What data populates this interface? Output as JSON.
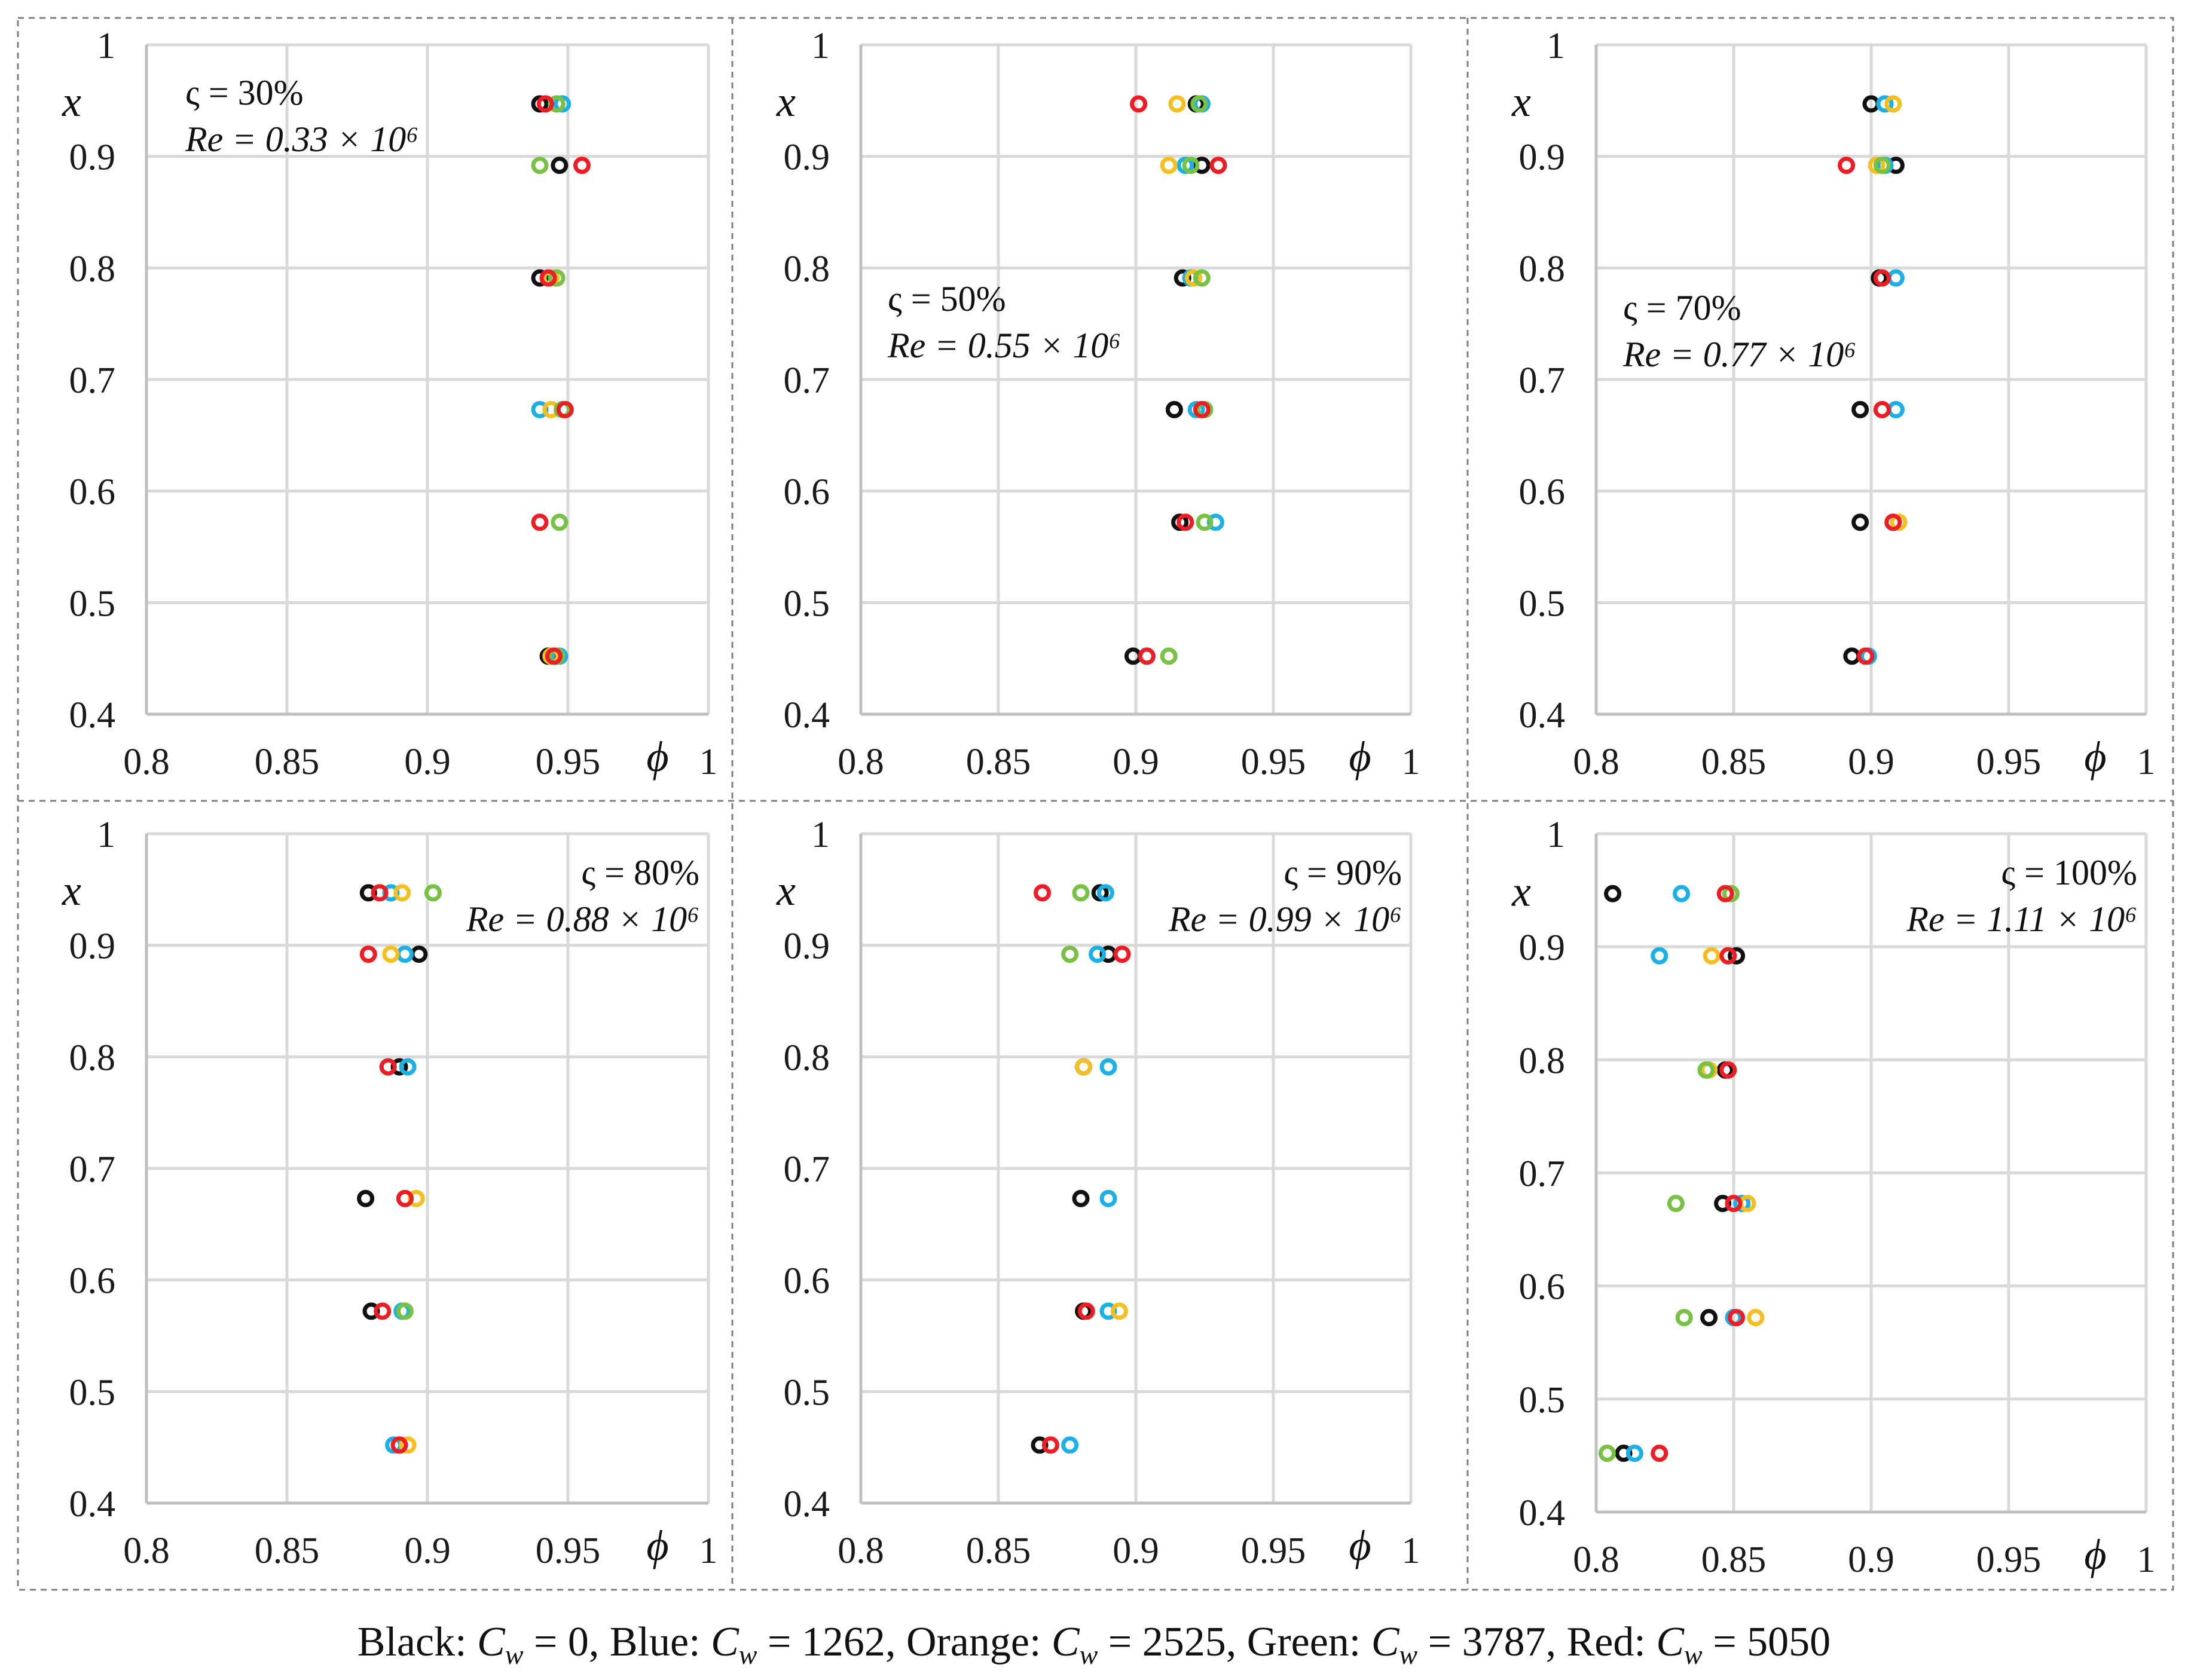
{
  "figure": {
    "caption": "Black:  C_w = 0, Blue:  C_w = 1262, Orange:  C_w = 2525, Green:  C_w = 3787, Red:  C_w = 5050",
    "legend": [
      {
        "label": "Black:",
        "name": "Black",
        "cw": "0"
      },
      {
        "label": "Blue:",
        "name": "Blue",
        "cw": "1262"
      },
      {
        "label": "Orange:",
        "name": "Orange",
        "cw": "2525"
      },
      {
        "label": "Green:",
        "name": "Green",
        "cw": "3787"
      },
      {
        "label": "Red:",
        "name": "Red",
        "cw": "5050"
      }
    ],
    "colors": {
      "Black": "#111111",
      "Blue": "#1bb0e6",
      "Orange": "#f5c01f",
      "Green": "#77c242",
      "Red": "#ee1c25",
      "grid": "#d9d9d9",
      "axis": "#bfbfbf",
      "divider": "#7f7f7f"
    }
  },
  "chart_data": [
    {
      "type": "scatter",
      "id": "p1",
      "varsigma": "ς = 30%",
      "re": "Re = 0.33 × 10⁶",
      "annotation_pos": "top-left",
      "xlabel": "ϕ",
      "ylabel": "x",
      "xlim": [
        0.8,
        1.0
      ],
      "ylim": [
        0.4,
        1.0
      ],
      "xticks": [
        "0.8",
        "0.85",
        "0.9",
        "0.95",
        "1"
      ],
      "yticks": [
        "0.4",
        "0.5",
        "0.6",
        "0.7",
        "0.8",
        "0.9",
        "1"
      ],
      "y": [
        0.452,
        0.572,
        0.673,
        0.791,
        0.892,
        0.947
      ],
      "series": [
        {
          "name": "Black",
          "values": [
            0.943,
            null,
            null,
            0.94,
            0.947,
            0.94
          ]
        },
        {
          "name": "Blue",
          "values": [
            0.947,
            null,
            0.94,
            null,
            null,
            0.948
          ]
        },
        {
          "name": "Orange",
          "values": [
            0.944,
            null,
            0.944,
            0.944,
            null,
            0.946
          ]
        },
        {
          "name": "Green",
          "values": [
            0.946,
            0.947,
            0.948,
            0.946,
            0.94,
            0.946
          ]
        },
        {
          "name": "Red",
          "values": [
            0.945,
            0.94,
            0.949,
            0.943,
            0.955,
            0.942
          ]
        }
      ]
    },
    {
      "type": "scatter",
      "id": "p2",
      "varsigma": "ς = 50%",
      "re": "Re = 0.55 × 10⁶",
      "annotation_pos": "middle-left",
      "xlabel": "ϕ",
      "ylabel": "x",
      "xlim": [
        0.8,
        1.0
      ],
      "ylim": [
        0.4,
        1.0
      ],
      "xticks": [
        "0.8",
        "0.85",
        "0.9",
        "0.95",
        "1"
      ],
      "yticks": [
        "0.4",
        "0.5",
        "0.6",
        "0.7",
        "0.8",
        "0.9",
        "1"
      ],
      "y": [
        0.452,
        0.572,
        0.673,
        0.791,
        0.892,
        0.947
      ],
      "series": [
        {
          "name": "Black",
          "values": [
            0.899,
            0.916,
            0.914,
            0.917,
            0.924,
            0.922
          ]
        },
        {
          "name": "Blue",
          "values": [
            0.904,
            0.929,
            0.922,
            0.92,
            0.918,
            0.924
          ]
        },
        {
          "name": "Orange",
          "values": [
            null,
            null,
            0.924,
            0.921,
            0.912,
            0.915
          ]
        },
        {
          "name": "Green",
          "values": [
            0.912,
            0.925,
            0.925,
            0.924,
            0.92,
            0.923
          ]
        },
        {
          "name": "Red",
          "values": [
            0.904,
            0.918,
            0.924,
            null,
            0.93,
            0.901
          ]
        }
      ]
    },
    {
      "type": "scatter",
      "id": "p3",
      "varsigma": "ς = 70%",
      "re": "Re = 0.77 × 10⁶",
      "annotation_pos": "middle-left",
      "xlabel": "ϕ",
      "ylabel": "x",
      "xlim": [
        0.8,
        1.0
      ],
      "ylim": [
        0.4,
        1.0
      ],
      "xticks": [
        "0.8",
        "0.85",
        "0.9",
        "0.95",
        "1"
      ],
      "yticks": [
        "0.4",
        "0.5",
        "0.6",
        "0.7",
        "0.8",
        "0.9",
        "1"
      ],
      "y": [
        0.452,
        0.572,
        0.673,
        0.791,
        0.892,
        0.947
      ],
      "series": [
        {
          "name": "Black",
          "values": [
            0.893,
            0.896,
            0.896,
            0.903,
            0.909,
            0.9
          ]
        },
        {
          "name": "Blue",
          "values": [
            0.899,
            0.908,
            0.909,
            0.909,
            0.905,
            0.905
          ]
        },
        {
          "name": "Orange",
          "values": [
            null,
            0.91,
            null,
            null,
            0.902,
            0.908
          ]
        },
        {
          "name": "Green",
          "values": [
            null,
            null,
            null,
            null,
            0.904,
            null
          ]
        },
        {
          "name": "Red",
          "values": [
            0.898,
            0.908,
            0.904,
            0.904,
            0.891,
            null
          ]
        }
      ]
    },
    {
      "type": "scatter",
      "id": "p4",
      "varsigma": "ς = 80%",
      "re": "Re = 0.88 × 10⁶",
      "annotation_pos": "top-right",
      "xlabel": "ϕ",
      "ylabel": "x",
      "xlim": [
        0.8,
        1.0
      ],
      "ylim": [
        0.4,
        1.0
      ],
      "xticks": [
        "0.8",
        "0.85",
        "0.9",
        "0.95",
        "1"
      ],
      "yticks": [
        "0.4",
        "0.5",
        "0.6",
        "0.7",
        "0.8",
        "0.9",
        "1"
      ],
      "y": [
        0.452,
        0.572,
        0.673,
        0.791,
        0.892,
        0.947
      ],
      "series": [
        {
          "name": "Black",
          "values": [
            null,
            0.88,
            0.878,
            0.89,
            0.897,
            0.879
          ]
        },
        {
          "name": "Blue",
          "values": [
            0.888,
            0.891,
            0.892,
            0.893,
            0.892,
            0.887
          ]
        },
        {
          "name": "Orange",
          "values": [
            0.893,
            null,
            0.896,
            null,
            0.887,
            0.891
          ]
        },
        {
          "name": "Green",
          "values": [
            null,
            0.892,
            null,
            null,
            null,
            0.902
          ]
        },
        {
          "name": "Red",
          "values": [
            0.89,
            0.884,
            0.892,
            0.886,
            0.879,
            0.883
          ]
        }
      ]
    },
    {
      "type": "scatter",
      "id": "p5",
      "varsigma": "ς = 90%",
      "re": "Re = 0.99 × 10⁶",
      "annotation_pos": "top-right",
      "xlabel": "ϕ",
      "ylabel": "x",
      "xlim": [
        0.8,
        1.0
      ],
      "ylim": [
        0.4,
        1.0
      ],
      "xticks": [
        "0.8",
        "0.85",
        "0.9",
        "0.95",
        "1"
      ],
      "yticks": [
        "0.4",
        "0.5",
        "0.6",
        "0.7",
        "0.8",
        "0.9",
        "1"
      ],
      "y": [
        0.452,
        0.572,
        0.673,
        0.791,
        0.892,
        0.947
      ],
      "series": [
        {
          "name": "Black",
          "values": [
            0.865,
            0.881,
            0.88,
            0.881,
            0.89,
            0.887
          ]
        },
        {
          "name": "Blue",
          "values": [
            0.876,
            0.89,
            0.89,
            0.89,
            0.886,
            0.889
          ]
        },
        {
          "name": "Orange",
          "values": [
            null,
            0.894,
            null,
            0.881,
            null,
            null
          ]
        },
        {
          "name": "Green",
          "values": [
            null,
            null,
            null,
            null,
            0.876,
            0.88
          ]
        },
        {
          "name": "Red",
          "values": [
            0.869,
            0.882,
            null,
            null,
            0.895,
            0.866
          ]
        }
      ]
    },
    {
      "type": "scatter",
      "id": "p6",
      "varsigma": "ς = 100%",
      "re": "Re = 1.11 × 10⁶",
      "annotation_pos": "top-right",
      "xlabel": "ϕ",
      "ylabel": "x",
      "xlim": [
        0.8,
        1.0
      ],
      "ylim": [
        0.4,
        1.0
      ],
      "xticks": [
        "0.8",
        "0.85",
        "0.9",
        "0.95",
        "1"
      ],
      "yticks": [
        "0.4",
        "0.5",
        "0.6",
        "0.7",
        "0.8",
        "0.9",
        "1"
      ],
      "y": [
        0.452,
        0.572,
        0.673,
        0.791,
        0.892,
        0.947
      ],
      "series": [
        {
          "name": "Black",
          "values": [
            0.81,
            0.841,
            0.846,
            0.847,
            0.851,
            0.806
          ]
        },
        {
          "name": "Blue",
          "values": [
            0.814,
            0.85,
            0.853,
            null,
            0.823,
            0.831
          ]
        },
        {
          "name": "Orange",
          "values": [
            null,
            0.858,
            0.855,
            0.841,
            0.842,
            null
          ]
        },
        {
          "name": "Green",
          "values": [
            0.804,
            0.832,
            0.829,
            0.84,
            null,
            0.849
          ]
        },
        {
          "name": "Red",
          "values": [
            0.823,
            0.851,
            0.85,
            0.848,
            0.848,
            0.847
          ]
        }
      ]
    }
  ]
}
